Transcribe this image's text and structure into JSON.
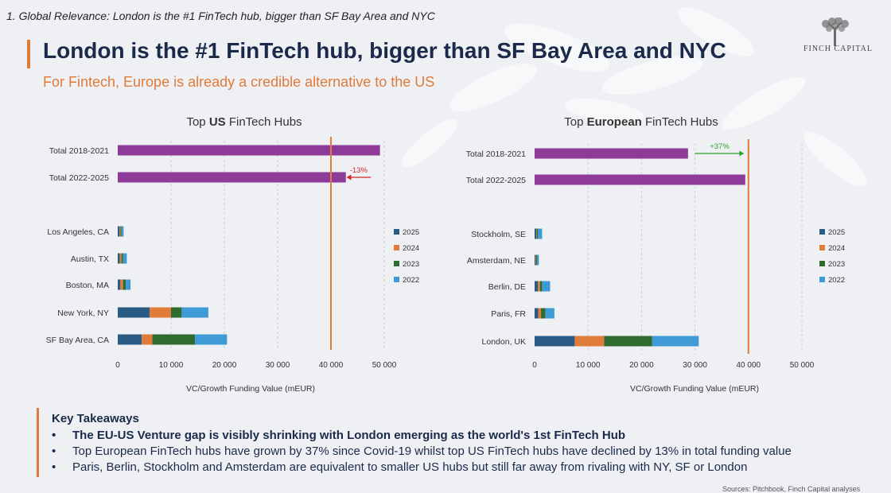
{
  "header": {
    "section_label": "1. Global Relevance: London is the #1 FinTech hub, bigger than SF Bay Area and NYC",
    "title": "London is the #1 FinTech hub, bigger than SF Bay Area and NYC",
    "subtitle": "For Fintech, Europe is already a credible alternative to the US",
    "logo_text": "FINCH CAPITAL"
  },
  "colors": {
    "total": "#8e3a98",
    "y2025": "#2a5b84",
    "y2024": "#e07b39",
    "y2023": "#2e6b2e",
    "y2022": "#3e9bd6",
    "ref_line": "#e07b39",
    "decline_arrow": "#d62728",
    "growth_arrow": "#2ca02c",
    "title": "#1b2a4a"
  },
  "chart_data": [
    {
      "type": "bar",
      "orientation": "horizontal",
      "stacked": true,
      "title_prefix": "Top ",
      "title_bold": "US",
      "title_suffix": " FinTech Hubs",
      "xlabel": "VC/Growth Funding Value (mEUR)",
      "xlim": [
        0,
        50000
      ],
      "xticks": [
        0,
        10000,
        20000,
        30000,
        40000,
        50000
      ],
      "xtick_labels": [
        "0",
        "10 000",
        "20 000",
        "30 000",
        "40 000",
        "50 000"
      ],
      "reference_line": 40000,
      "totals": [
        {
          "label": "Total 2018-2021",
          "value": 49200
        },
        {
          "label": "Total 2022-2025",
          "value": 42800
        }
      ],
      "annotation": {
        "text": "-13%",
        "from": 47500,
        "to": 42900,
        "row": 1,
        "direction": "decline"
      },
      "categories": [
        "Los Angeles, CA",
        "Austin, TX",
        "Boston, MA",
        "New York, NY",
        "SF Bay Area, CA"
      ],
      "series": [
        {
          "name": "2025",
          "values": [
            300,
            400,
            500,
            6000,
            4500
          ]
        },
        {
          "name": "2024",
          "values": [
            200,
            300,
            500,
            4000,
            2000
          ]
        },
        {
          "name": "2023",
          "values": [
            200,
            300,
            500,
            2000,
            8000
          ]
        },
        {
          "name": "2022",
          "values": [
            400,
            700,
            900,
            5000,
            6000
          ]
        }
      ],
      "legend": [
        "2025",
        "2024",
        "2023",
        "2022"
      ]
    },
    {
      "type": "bar",
      "orientation": "horizontal",
      "stacked": true,
      "title_prefix": "Top ",
      "title_bold": "European",
      "title_suffix": " FinTech Hubs",
      "xlabel": "VC/Growth Funding Value (mEUR)",
      "xlim": [
        0,
        50000
      ],
      "xticks": [
        0,
        10000,
        20000,
        30000,
        40000,
        50000
      ],
      "xtick_labels": [
        "0",
        "10 000",
        "20 000",
        "30 000",
        "40 000",
        "50 000"
      ],
      "reference_line": 40000,
      "totals": [
        {
          "label": "Total 2018-2021",
          "value": 28700
        },
        {
          "label": "Total 2022-2025",
          "value": 39400
        }
      ],
      "annotation": {
        "text": "+37%",
        "from": 30000,
        "to": 39200,
        "row": 0,
        "direction": "growth"
      },
      "categories": [
        "Stockholm, SE",
        "Amsterdam, NE",
        "Berlin, DE",
        "Paris, FR",
        "London, UK"
      ],
      "series": [
        {
          "name": "2025",
          "values": [
            300,
            200,
            600,
            700,
            7500
          ]
        },
        {
          "name": "2024",
          "values": [
            100,
            100,
            400,
            500,
            5500
          ]
        },
        {
          "name": "2023",
          "values": [
            200,
            200,
            400,
            800,
            9000
          ]
        },
        {
          "name": "2022",
          "values": [
            800,
            300,
            1500,
            1700,
            8700
          ]
        }
      ],
      "legend": [
        "2025",
        "2024",
        "2023",
        "2022"
      ]
    }
  ],
  "takeaways": {
    "title": "Key Takeaways",
    "bullet": "•",
    "items": [
      "The EU-US Venture gap is visibly shrinking with London emerging as the world's 1st FinTech Hub",
      "Top European FinTech hubs have grown by 37% since Covid-19 whilst top US FinTech hubs have declined by 13% in total funding value",
      "Paris, Berlin, Stockholm and Amsterdam are equivalent to smaller US hubs but still far away from rivaling with NY, SF or London"
    ]
  },
  "source": "Sources: Pitchbook, Finch Capital analyses"
}
